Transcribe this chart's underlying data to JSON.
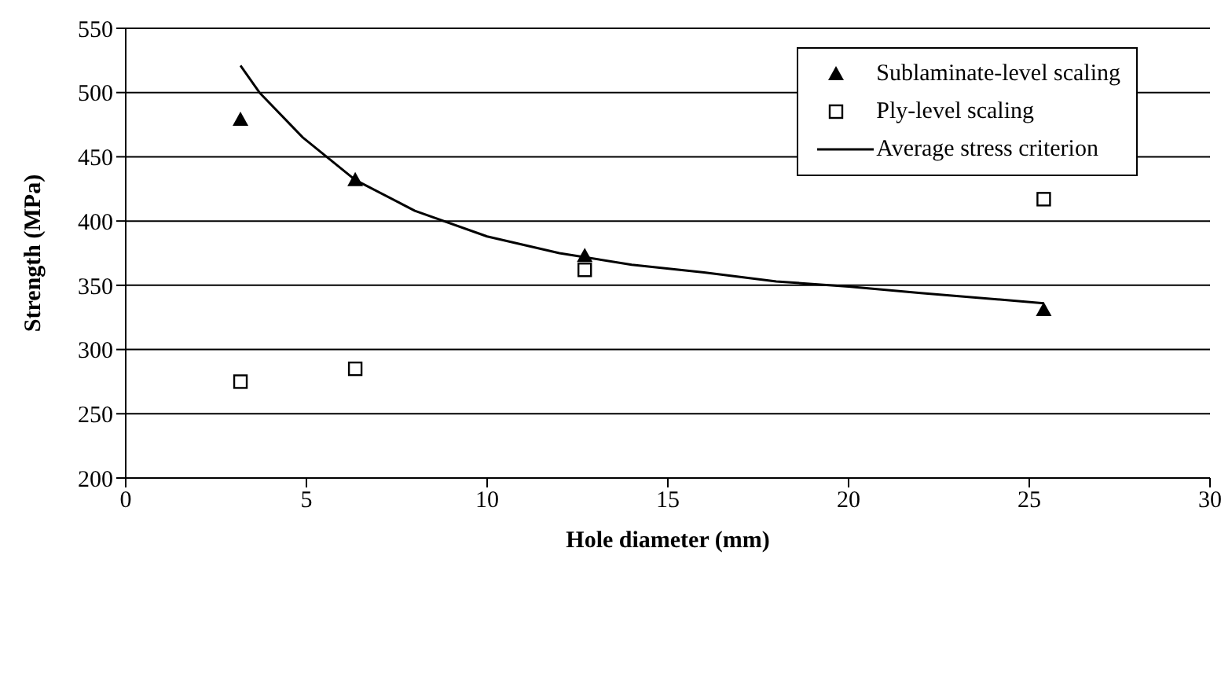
{
  "chart_data": {
    "type": "scatter",
    "xlabel": "Hole diameter (mm)",
    "ylabel": "Strength (MPa)",
    "xlim": [
      0,
      30
    ],
    "xticks": [
      0,
      5,
      10,
      15,
      20,
      25,
      30
    ],
    "ylim": [
      200,
      550
    ],
    "yticks": [
      200,
      250,
      300,
      350,
      400,
      450,
      500,
      550
    ],
    "grid": "y",
    "legend": "top right",
    "series": [
      {
        "name": "Sublaminate-level scaling",
        "marker": "triangle",
        "color": "#000000",
        "x": [
          3.175,
          6.35,
          12.7,
          25.4
        ],
        "values": [
          479,
          432,
          373,
          331
        ]
      },
      {
        "name": "Ply-level scaling",
        "marker": "square",
        "color": "#000000",
        "x": [
          3.175,
          6.35,
          12.7,
          25.4
        ],
        "values": [
          275,
          285,
          362,
          417
        ]
      },
      {
        "name": "Average stress criterion",
        "type": "line",
        "marker": "none",
        "line_style": "solid",
        "color": "#000000",
        "x": [
          3.175,
          3.7,
          4.9,
          6.35,
          8,
          10,
          12,
          14,
          16,
          18,
          20,
          22,
          25.4
        ],
        "values": [
          521,
          500,
          465,
          432,
          408,
          388,
          375,
          366,
          360,
          353,
          349,
          344,
          336
        ]
      }
    ]
  }
}
